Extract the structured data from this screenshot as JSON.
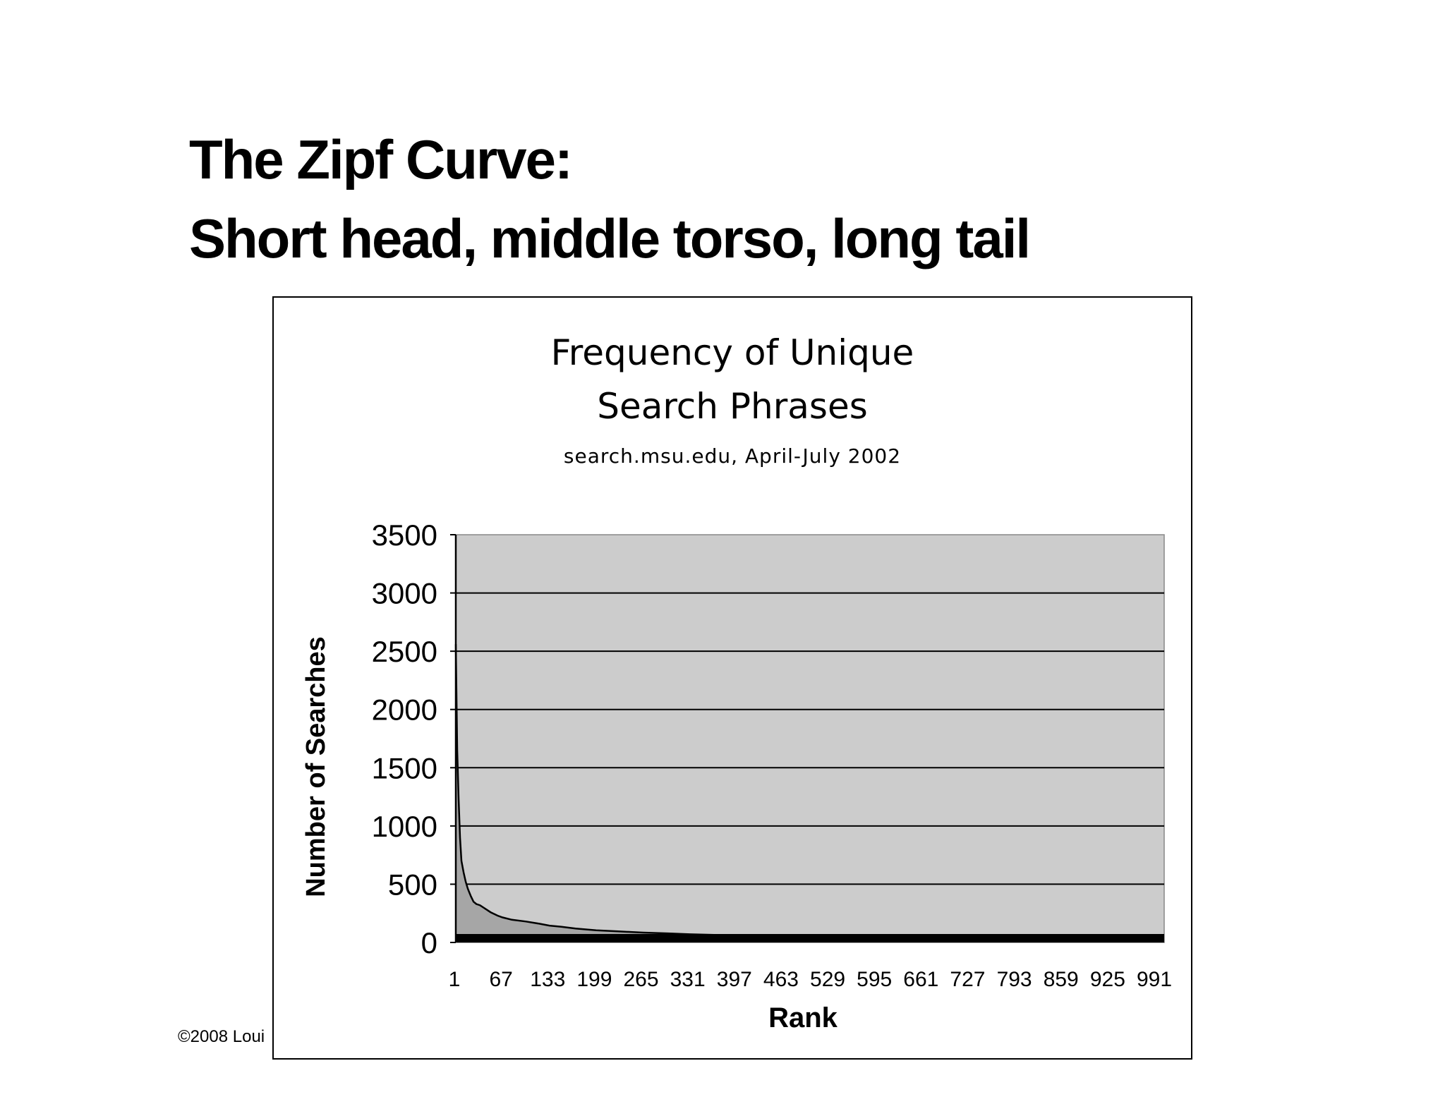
{
  "slide": {
    "title_line1": "The Zipf Curve:",
    "title_line2": "Short head, middle torso, long tail",
    "copyright": "©2008 Loui"
  },
  "chart_data": {
    "type": "area",
    "title_line1": "Frequency of Unique",
    "title_line2": "Search Phrases",
    "subtitle": "search.msu.edu, April-July 2002",
    "xlabel": "Rank",
    "ylabel": "Number of Searches",
    "ylim": [
      0,
      3500
    ],
    "xlim": [
      1,
      1000
    ],
    "yticks": [
      0,
      500,
      1000,
      1500,
      2000,
      2500,
      3000,
      3500
    ],
    "xtick_labels": [
      "1",
      "67",
      "133",
      "199",
      "265",
      "331",
      "397",
      "463",
      "529",
      "595",
      "661",
      "727",
      "793",
      "859",
      "925",
      "991"
    ],
    "grid": true,
    "legend": "none",
    "colors": {
      "plot_bg": "#cccccc",
      "fill": "#a6a6a6",
      "line": "#000000"
    },
    "series": [
      {
        "x": [
          1,
          2,
          3,
          5,
          7,
          9,
          12,
          15,
          18,
          22,
          26,
          30,
          35,
          40,
          50,
          60,
          67,
          80,
          100,
          120,
          133,
          150,
          170,
          199,
          230,
          265,
          300,
          331,
          397,
          463,
          529,
          595,
          661,
          727,
          793,
          859,
          925,
          991,
          1000
        ],
        "y": [
          2560,
          2100,
          1650,
          1230,
          900,
          700,
          600,
          520,
          460,
          400,
          350,
          330,
          320,
          300,
          260,
          230,
          215,
          195,
          180,
          160,
          145,
          135,
          120,
          105,
          95,
          85,
          78,
          70,
          60,
          55,
          50,
          45,
          40,
          37,
          33,
          28,
          25,
          22,
          20
        ]
      }
    ]
  }
}
